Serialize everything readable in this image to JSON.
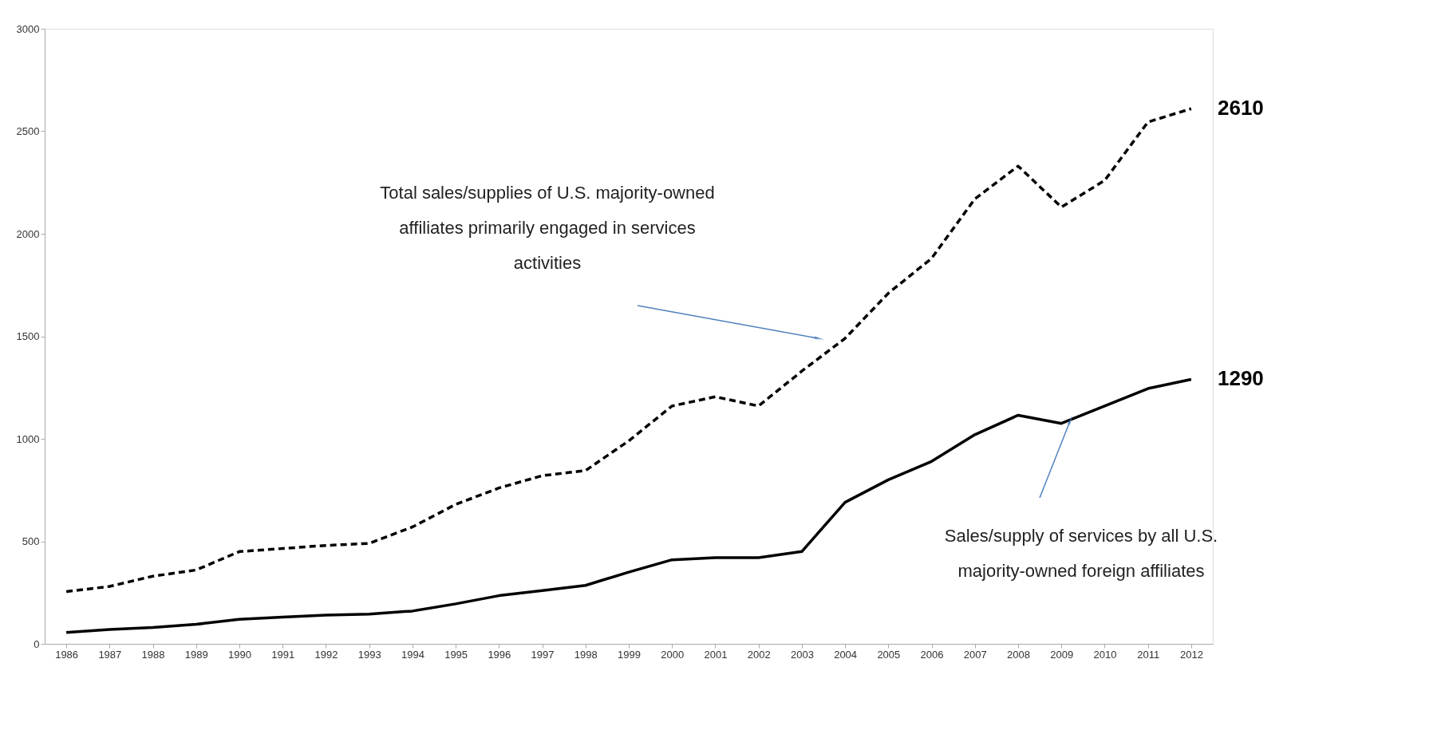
{
  "chart_data": {
    "type": "line",
    "categories": [
      "1986",
      "1987",
      "1988",
      "1989",
      "1990",
      "1991",
      "1992",
      "1993",
      "1994",
      "1995",
      "1996",
      "1997",
      "1998",
      "1999",
      "2000",
      "2001",
      "2002",
      "2003",
      "2004",
      "2005",
      "2006",
      "2007",
      "2008",
      "2009",
      "2010",
      "2011",
      "2012"
    ],
    "series": [
      {
        "color": "#000000",
        "line_style": "dashed",
        "values": [
          255,
          280,
          330,
          360,
          450,
          465,
          480,
          490,
          570,
          680,
          760,
          820,
          845,
          990,
          1160,
          1205,
          1160,
          1330,
          1490,
          1710,
          1880,
          2170,
          2330,
          2130,
          2260,
          2545,
          2610
        ],
        "value_labels": [
          null,
          null,
          null,
          null,
          null,
          null,
          null,
          null,
          null,
          null,
          null,
          null,
          null,
          null,
          null,
          null,
          null,
          null,
          null,
          null,
          null,
          null,
          null,
          null,
          null,
          null,
          "2610"
        ]
      },
      {
        "color": "#000000",
        "line_style": "solid",
        "values": [
          55,
          70,
          80,
          95,
          120,
          130,
          140,
          145,
          160,
          195,
          235,
          260,
          285,
          350,
          410,
          420,
          420,
          450,
          690,
          800,
          890,
          1020,
          1115,
          1075,
          1160,
          1245,
          1290
        ],
        "value_labels": [
          null,
          null,
          null,
          null,
          null,
          null,
          null,
          null,
          null,
          null,
          null,
          null,
          null,
          null,
          null,
          null,
          null,
          null,
          null,
          null,
          null,
          null,
          null,
          null,
          null,
          null,
          "1290"
        ]
      }
    ],
    "ylim": [
      0,
      3000
    ],
    "yticks": [
      0,
      500,
      1000,
      1500,
      2000,
      2500,
      3000
    ],
    "annotations": [
      "Total sales/supplies of U.S. majority-owned affiliates primarily engaged in services activities",
      "Sales/supply of services by all U.S. majority-owned foreign affiliates"
    ],
    "grid": false,
    "marker": "none"
  }
}
